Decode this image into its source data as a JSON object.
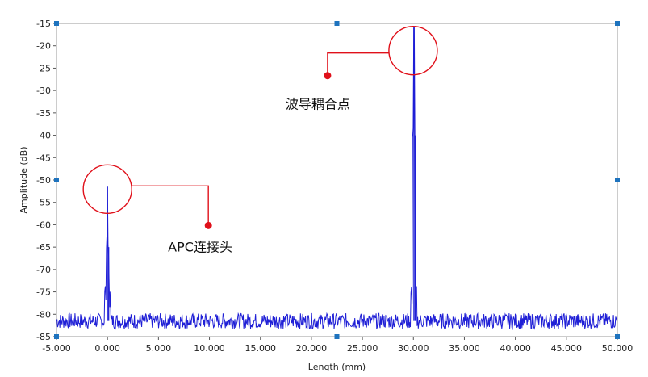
{
  "chart_data": {
    "type": "line",
    "title": "",
    "xlabel": "Length (mm)",
    "ylabel": "Amplitude (dB)",
    "xlim": [
      -5,
      50
    ],
    "ylim": [
      -85,
      -15
    ],
    "x_ticks": [
      -5,
      0,
      5,
      10,
      15,
      20,
      25,
      30,
      35,
      40,
      45,
      50
    ],
    "x_tick_labels": [
      "-5.000",
      "0.000",
      "5.000",
      "10.000",
      "15.000",
      "20.000",
      "25.000",
      "30.000",
      "35.000",
      "40.000",
      "45.000",
      "50.000"
    ],
    "y_ticks": [
      -15,
      -20,
      -25,
      -30,
      -35,
      -40,
      -45,
      -50,
      -55,
      -60,
      -65,
      -70,
      -75,
      -80,
      -85
    ],
    "y_tick_labels": [
      "-15",
      "-20",
      "-25",
      "-30",
      "-35",
      "-40",
      "-45",
      "-50",
      "-55",
      "-60",
      "-65",
      "-70",
      "-75",
      "-80",
      "-85"
    ],
    "grid": false,
    "series": [
      {
        "color": "#1f1fd6",
        "noise_floor": -81.5,
        "noise_band": [
          -83,
          -79.5
        ],
        "peaks": [
          {
            "x": 0.0,
            "y": -51.5,
            "shoulder_y": -65
          },
          {
            "x": 30.05,
            "y": -16,
            "shoulder_y": -40
          }
        ]
      }
    ],
    "annotations": [
      {
        "text": "APC连接头",
        "x": 0.0,
        "y": -51.5
      },
      {
        "text": "波导耦合点",
        "x": 30.05,
        "y": -20
      }
    ],
    "colors": {
      "line": "#1f1fd6",
      "annotation": "#e0101a",
      "axis": "#999999",
      "handle": "#1e73be"
    }
  }
}
